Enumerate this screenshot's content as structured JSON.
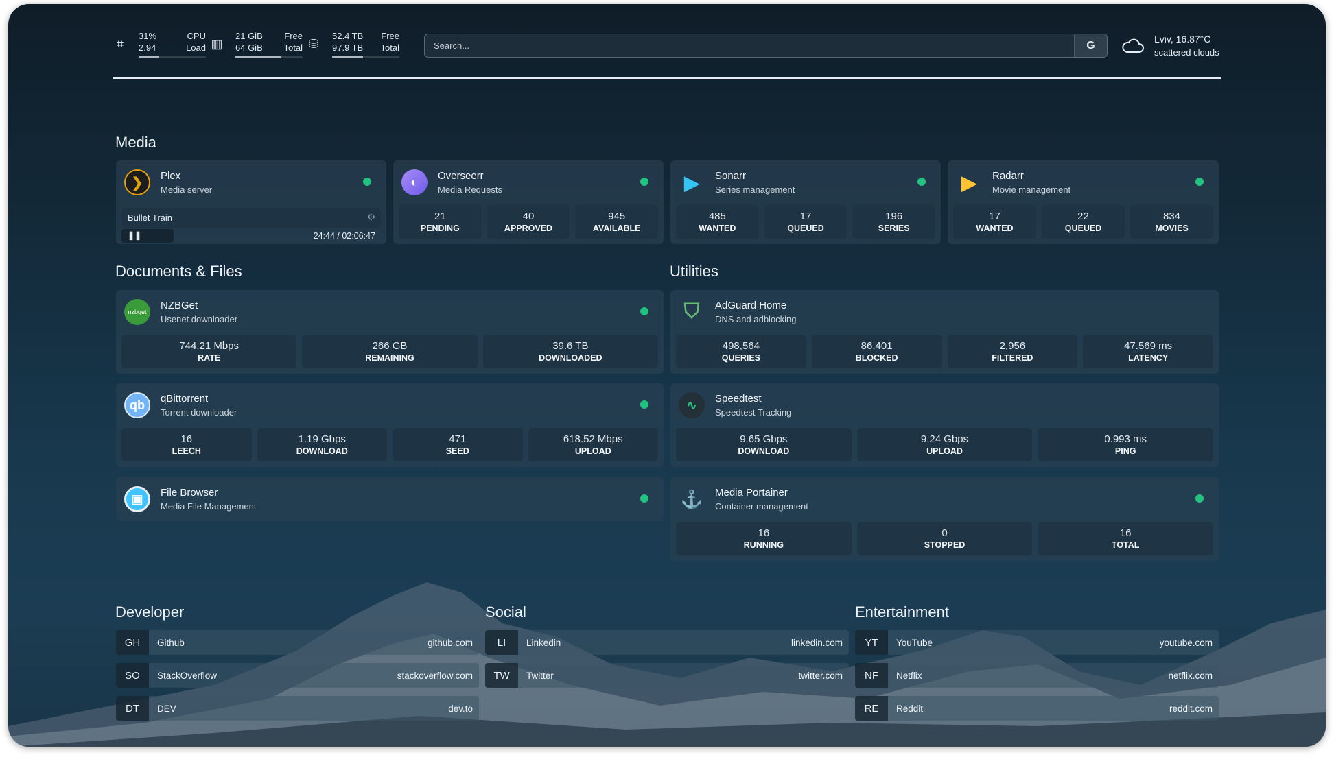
{
  "topbar": {
    "cpu": {
      "icon": "cpu-icon",
      "v1": "31%",
      "v2": "2.94",
      "l1": "CPU",
      "l2": "Load",
      "percent": 31
    },
    "memory": {
      "icon": "memory-icon",
      "v1": "21 GiB",
      "v2": "64 GiB",
      "l1": "Free",
      "l2": "Total",
      "percent": 67
    },
    "disk": {
      "icon": "disk-icon",
      "v1": "52.4 TB",
      "v2": "97.9 TB",
      "l1": "Free",
      "l2": "Total",
      "percent": 46
    },
    "search": {
      "placeholder": "Search...",
      "button": "G"
    },
    "weather": {
      "icon": "cloud-icon",
      "location": "Lviv, 16.87°C",
      "condition": "scattered clouds"
    }
  },
  "sections": {
    "media": "Media",
    "documents": "Documents & Files",
    "utilities": "Utilities",
    "developer": "Developer",
    "social": "Social",
    "entertainment": "Entertainment"
  },
  "status_color": "#22c380",
  "plex": {
    "title": "Plex",
    "subtitle": "Media server",
    "icon": "plex-icon",
    "now_playing": "Bullet Train",
    "time": "24:44 / 02:06:47",
    "progress_percent": 20
  },
  "cards": [
    {
      "id": "overseerr",
      "title": "Overseerr",
      "subtitle": "Media Requests",
      "icon": "overseerr-icon",
      "stats": [
        {
          "value": "21",
          "label": "PENDING"
        },
        {
          "value": "40",
          "label": "APPROVED"
        },
        {
          "value": "945",
          "label": "AVAILABLE"
        }
      ]
    },
    {
      "id": "sonarr",
      "title": "Sonarr",
      "subtitle": "Series management",
      "icon": "sonarr-icon",
      "stats": [
        {
          "value": "485",
          "label": "WANTED"
        },
        {
          "value": "17",
          "label": "QUEUED"
        },
        {
          "value": "196",
          "label": "SERIES"
        }
      ]
    },
    {
      "id": "radarr",
      "title": "Radarr",
      "subtitle": "Movie management",
      "icon": "radarr-icon",
      "stats": [
        {
          "value": "17",
          "label": "WANTED"
        },
        {
          "value": "22",
          "label": "QUEUED"
        },
        {
          "value": "834",
          "label": "MOVIES"
        }
      ]
    },
    {
      "id": "nzbget",
      "title": "NZBGet",
      "subtitle": "Usenet downloader",
      "icon": "nzbget-icon",
      "icon_text": "nzbget",
      "stats": [
        {
          "value": "744.21 Mbps",
          "label": "RATE"
        },
        {
          "value": "266 GB",
          "label": "REMAINING"
        },
        {
          "value": "39.6 TB",
          "label": "DOWNLOADED"
        }
      ]
    },
    {
      "id": "qbittorrent",
      "title": "qBittorrent",
      "subtitle": "Torrent downloader",
      "icon": "qbittorrent-icon",
      "icon_text": "qb",
      "stats": [
        {
          "value": "16",
          "label": "LEECH"
        },
        {
          "value": "1.19 Gbps",
          "label": "DOWNLOAD"
        },
        {
          "value": "471",
          "label": "SEED"
        },
        {
          "value": "618.52 Mbps",
          "label": "UPLOAD"
        }
      ]
    },
    {
      "id": "filebrowser",
      "title": "File Browser",
      "subtitle": "Media File Management",
      "icon": "filebrowser-icon",
      "stats": []
    },
    {
      "id": "adguard",
      "title": "AdGuard Home",
      "subtitle": "DNS and adblocking",
      "icon": "adguard-shield-icon",
      "nodot": true,
      "stats": [
        {
          "value": "498,564",
          "label": "QUERIES"
        },
        {
          "value": "86,401",
          "label": "BLOCKED"
        },
        {
          "value": "2,956",
          "label": "FILTERED"
        },
        {
          "value": "47.569 ms",
          "label": "LATENCY"
        }
      ]
    },
    {
      "id": "speedtest",
      "title": "Speedtest",
      "subtitle": "Speedtest Tracking",
      "icon": "speedtest-icon",
      "nodot": true,
      "stats": [
        {
          "value": "9.65 Gbps",
          "label": "DOWNLOAD"
        },
        {
          "value": "9.24 Gbps",
          "label": "UPLOAD"
        },
        {
          "value": "0.993 ms",
          "label": "PING"
        }
      ]
    },
    {
      "id": "portainer",
      "title": "Media Portainer",
      "subtitle": "Container management",
      "icon": "portainer-icon",
      "stats": [
        {
          "value": "16",
          "label": "RUNNING"
        },
        {
          "value": "0",
          "label": "STOPPED"
        },
        {
          "value": "16",
          "label": "TOTAL"
        }
      ]
    }
  ],
  "bookmarks": [
    [
      {
        "abbr": "GH",
        "name": "Github",
        "url": "github.com"
      },
      {
        "abbr": "SO",
        "name": "StackOverflow",
        "url": "stackoverflow.com"
      },
      {
        "abbr": "DT",
        "name": "DEV",
        "url": "dev.to"
      }
    ],
    [
      {
        "abbr": "LI",
        "name": "Linkedin",
        "url": "linkedin.com"
      },
      {
        "abbr": "TW",
        "name": "Twitter",
        "url": "twitter.com"
      }
    ],
    [
      {
        "abbr": "YT",
        "name": "YouTube",
        "url": "youtube.com"
      },
      {
        "abbr": "NF",
        "name": "Netflix",
        "url": "netflix.com"
      },
      {
        "abbr": "RE",
        "name": "Reddit",
        "url": "reddit.com"
      }
    ]
  ]
}
